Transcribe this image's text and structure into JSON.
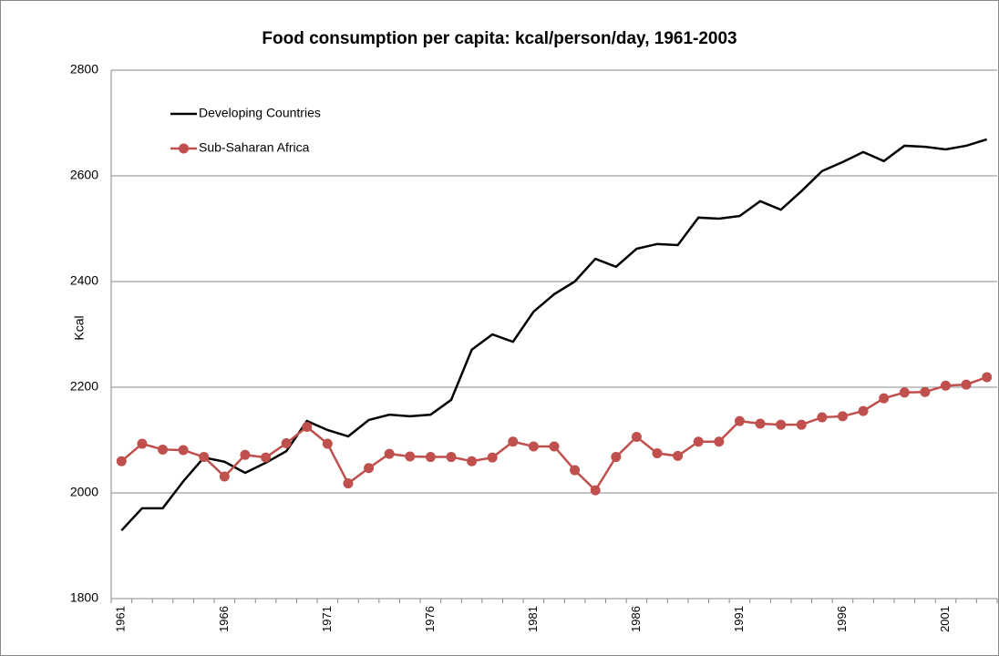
{
  "chart_data": {
    "type": "line",
    "title": "Food consumption per capita: kcal/person/day, 1961-2003",
    "y_label": "Kcal",
    "categories": [
      "1961",
      null,
      null,
      null,
      null,
      "1966",
      null,
      null,
      null,
      null,
      "1971",
      null,
      null,
      null,
      null,
      "1976",
      null,
      null,
      null,
      null,
      "1981",
      null,
      null,
      null,
      null,
      "1986",
      null,
      null,
      null,
      null,
      "1991",
      null,
      null,
      null,
      null,
      "1996",
      null,
      null,
      null,
      null,
      "2001",
      null,
      null
    ],
    "series": [
      {
        "name": "Developing Countries",
        "color": "#000000",
        "marker": false,
        "values": [
          1929,
          1971,
          1971,
          2022,
          2067,
          2059,
          2038,
          2057,
          2079,
          2136,
          2119,
          2107,
          2138,
          2148,
          2145,
          2148,
          2176,
          2271,
          2300,
          2286,
          2343,
          2376,
          2400,
          2443,
          2428,
          2462,
          2471,
          2469,
          2521,
          2519,
          2524,
          2552,
          2536,
          2571,
          2609,
          2626,
          2645,
          2628,
          2657,
          2655,
          2650,
          2657,
          2669
        ]
      },
      {
        "name": "Sub-Saharan Africa",
        "color": "#c0504d",
        "marker": true,
        "values": [
          2060,
          2093,
          2082,
          2081,
          2068,
          2031,
          2072,
          2067,
          2094,
          2125,
          2093,
          2018,
          2047,
          2074,
          2069,
          2068,
          2068,
          2060,
          2067,
          2097,
          2088,
          2088,
          2043,
          2005,
          2068,
          2106,
          2075,
          2070,
          2097,
          2097,
          2136,
          2131,
          2129,
          2129,
          2143,
          2145,
          2155,
          2179,
          2190,
          2191,
          2203,
          2205,
          2219
        ]
      }
    ],
    "ylim": [
      1800,
      2800
    ],
    "yticks": [
      1800,
      2000,
      2200,
      2400,
      2600,
      2800
    ],
    "grid": true,
    "legend": "upper left"
  }
}
